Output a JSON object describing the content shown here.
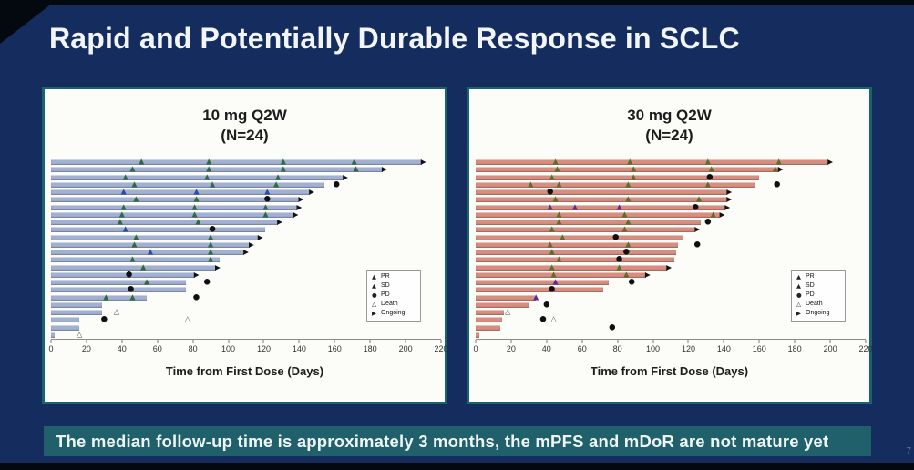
{
  "slide": {
    "title": "Rapid and Potentially Durable Response in SCLC",
    "footer_banner": "The median follow-up time is approximately 3 months, the mPFS and mDoR are not mature yet",
    "page_number": "7"
  },
  "colors": {
    "background": "#152d5e",
    "title_text": "#f2f6fc",
    "card_border": "#17646f",
    "card_bg": "#fcfcf9",
    "banner_bg": "#20606a",
    "banner_text": "#eef5f4",
    "axis": "#8a8a8a",
    "pd": "#101010",
    "death": "#3f3f3f",
    "ongoing": "#101010"
  },
  "legend": {
    "items": [
      {
        "label": "PR",
        "glyph": "filled-triangle"
      },
      {
        "label": "SD",
        "glyph": "filled-triangle"
      },
      {
        "label": "PD",
        "glyph": "filled-circle"
      },
      {
        "label": "Death",
        "glyph": "open-triangle"
      },
      {
        "label": "Ongoing",
        "glyph": "filled-arrow"
      }
    ]
  },
  "chart_data": [
    {
      "type": "bar",
      "variant": "swimmer-plot",
      "title": "10 mg Q2W",
      "subtitle": "(N=24)",
      "xlabel": "Time from First Dose (Days)",
      "xlim": [
        0,
        220
      ],
      "xticks": [
        0,
        20,
        40,
        60,
        80,
        100,
        120,
        140,
        160,
        180,
        200,
        220
      ],
      "bar_color": "#a2b0d2",
      "pr_color": "#2d6a3f",
      "sd_color": "#2b4ba8",
      "legend_position": "middle-right",
      "patients": [
        {
          "bar": 209,
          "ongoing": true,
          "markers": [
            {
              "t": "PR",
              "d": 51
            },
            {
              "t": "PR",
              "d": 89
            },
            {
              "t": "PR",
              "d": 131
            },
            {
              "t": "PR",
              "d": 171
            }
          ]
        },
        {
          "bar": 187,
          "ongoing": true,
          "markers": [
            {
              "t": "PR",
              "d": 46
            },
            {
              "t": "PR",
              "d": 89
            },
            {
              "t": "PR",
              "d": 131
            },
            {
              "t": "PR",
              "d": 172
            }
          ]
        },
        {
          "bar": 165,
          "ongoing": true,
          "markers": [
            {
              "t": "PR",
              "d": 42
            },
            {
              "t": "PR",
              "d": 88
            },
            {
              "t": "PR",
              "d": 128
            }
          ]
        },
        {
          "bar": 154,
          "ongoing": false,
          "markers": [
            {
              "t": "PR",
              "d": 47
            },
            {
              "t": "PR",
              "d": 91
            },
            {
              "t": "PR",
              "d": 127
            },
            {
              "t": "PD",
              "d": 161
            }
          ]
        },
        {
          "bar": 146,
          "ongoing": true,
          "markers": [
            {
              "t": "SD",
              "d": 41
            },
            {
              "t": "SD",
              "d": 82
            },
            {
              "t": "SD",
              "d": 122
            }
          ]
        },
        {
          "bar": 140,
          "ongoing": true,
          "markers": [
            {
              "t": "PR",
              "d": 48
            },
            {
              "t": "PR",
              "d": 82
            },
            {
              "t": "PD",
              "d": 122
            }
          ]
        },
        {
          "bar": 139,
          "ongoing": true,
          "markers": [
            {
              "t": "PR",
              "d": 41
            },
            {
              "t": "PR",
              "d": 81
            },
            {
              "t": "PR",
              "d": 121
            }
          ]
        },
        {
          "bar": 137,
          "ongoing": true,
          "markers": [
            {
              "t": "PR",
              "d": 40
            },
            {
              "t": "PR",
              "d": 81
            },
            {
              "t": "PR",
              "d": 121
            }
          ]
        },
        {
          "bar": 128,
          "ongoing": true,
          "markers": [
            {
              "t": "PR",
              "d": 39
            },
            {
              "t": "PR",
              "d": 83
            }
          ]
        },
        {
          "bar": 121,
          "ongoing": false,
          "markers": [
            {
              "t": "SD",
              "d": 42
            },
            {
              "t": "PD",
              "d": 91
            }
          ]
        },
        {
          "bar": 117,
          "ongoing": true,
          "markers": [
            {
              "t": "PR",
              "d": 48
            },
            {
              "t": "PR",
              "d": 90
            }
          ]
        },
        {
          "bar": 112,
          "ongoing": true,
          "markers": [
            {
              "t": "PR",
              "d": 47
            },
            {
              "t": "PR",
              "d": 90
            }
          ]
        },
        {
          "bar": 109,
          "ongoing": true,
          "markers": [
            {
              "t": "SD",
              "d": 56
            },
            {
              "t": "PR",
              "d": 90
            }
          ]
        },
        {
          "bar": 95,
          "ongoing": false,
          "markers": [
            {
              "t": "PR",
              "d": 46
            },
            {
              "t": "PR",
              "d": 90
            }
          ]
        },
        {
          "bar": 93,
          "ongoing": true,
          "markers": [
            {
              "t": "PR",
              "d": 52
            }
          ]
        },
        {
          "bar": 81,
          "ongoing": true,
          "markers": [
            {
              "t": "PD",
              "d": 44
            }
          ]
        },
        {
          "bar": 76,
          "ongoing": false,
          "markers": [
            {
              "t": "PR",
              "d": 54
            },
            {
              "t": "PD",
              "d": 88
            }
          ]
        },
        {
          "bar": 76,
          "ongoing": false,
          "markers": [
            {
              "t": "PD",
              "d": 45
            }
          ]
        },
        {
          "bar": 54,
          "ongoing": false,
          "markers": [
            {
              "t": "PR",
              "d": 31
            },
            {
              "t": "PR",
              "d": 46
            },
            {
              "t": "PD",
              "d": 82
            }
          ]
        },
        {
          "bar": 29,
          "ongoing": false,
          "markers": []
        },
        {
          "bar": 29,
          "ongoing": false,
          "markers": [
            {
              "t": "Death",
              "d": 37
            }
          ]
        },
        {
          "bar": 16,
          "ongoing": false,
          "markers": [
            {
              "t": "PD",
              "d": 30
            },
            {
              "t": "Death",
              "d": 77
            }
          ]
        },
        {
          "bar": 16,
          "ongoing": false,
          "markers": []
        },
        {
          "bar": 2,
          "ongoing": false,
          "markers": [
            {
              "t": "Death",
              "d": 16
            }
          ]
        }
      ]
    },
    {
      "type": "bar",
      "variant": "swimmer-plot",
      "title": "30 mg Q2W",
      "subtitle": "(N=24)",
      "xlabel": "Time from First Dose (Days)",
      "xlim": [
        0,
        220
      ],
      "xticks": [
        0,
        20,
        40,
        60,
        80,
        100,
        120,
        140,
        160,
        180,
        200,
        220
      ],
      "bar_color": "#d78e80",
      "pr_color": "#5d6e2a",
      "sd_color": "#5c2d91",
      "legend_position": "middle-right",
      "patients": [
        {
          "bar": 199,
          "ongoing": true,
          "markers": [
            {
              "t": "PR",
              "d": 45
            },
            {
              "t": "PR",
              "d": 87
            },
            {
              "t": "PR",
              "d": 131
            },
            {
              "t": "PR",
              "d": 171
            }
          ]
        },
        {
          "bar": 171,
          "ongoing": true,
          "markers": [
            {
              "t": "PR",
              "d": 46
            },
            {
              "t": "PR",
              "d": 89
            },
            {
              "t": "PR",
              "d": 133
            },
            {
              "t": "PR",
              "d": 169
            }
          ]
        },
        {
          "bar": 160,
          "ongoing": false,
          "markers": [
            {
              "t": "PR",
              "d": 43
            },
            {
              "t": "PR",
              "d": 89
            },
            {
              "t": "PD",
              "d": 132
            }
          ]
        },
        {
          "bar": 158,
          "ongoing": false,
          "markers": [
            {
              "t": "PR",
              "d": 31
            },
            {
              "t": "PR",
              "d": 47
            },
            {
              "t": "PR",
              "d": 86
            },
            {
              "t": "PR",
              "d": 131
            },
            {
              "t": "PD",
              "d": 170
            }
          ]
        },
        {
          "bar": 142,
          "ongoing": true,
          "markers": [
            {
              "t": "PD",
              "d": 42
            }
          ]
        },
        {
          "bar": 142,
          "ongoing": true,
          "markers": [
            {
              "t": "PR",
              "d": 45
            },
            {
              "t": "PR",
              "d": 86
            },
            {
              "t": "PR",
              "d": 126
            }
          ]
        },
        {
          "bar": 141,
          "ongoing": true,
          "markers": [
            {
              "t": "SD",
              "d": 42
            },
            {
              "t": "SD",
              "d": 56
            },
            {
              "t": "SD",
              "d": 81
            },
            {
              "t": "PD",
              "d": 124
            }
          ]
        },
        {
          "bar": 138,
          "ongoing": true,
          "markers": [
            {
              "t": "PR",
              "d": 47
            },
            {
              "t": "PR",
              "d": 84
            },
            {
              "t": "PR",
              "d": 134
            }
          ]
        },
        {
          "bar": 127,
          "ongoing": false,
          "markers": [
            {
              "t": "PR",
              "d": 47
            },
            {
              "t": "PR",
              "d": 86
            },
            {
              "t": "PD",
              "d": 131
            }
          ]
        },
        {
          "bar": 124,
          "ongoing": true,
          "markers": [
            {
              "t": "PR",
              "d": 43
            },
            {
              "t": "PR",
              "d": 84
            }
          ]
        },
        {
          "bar": 117,
          "ongoing": false,
          "markers": [
            {
              "t": "PR",
              "d": 49
            },
            {
              "t": "PD",
              "d": 79
            }
          ]
        },
        {
          "bar": 114,
          "ongoing": false,
          "markers": [
            {
              "t": "PR",
              "d": 42
            },
            {
              "t": "PR",
              "d": 86
            },
            {
              "t": "PD",
              "d": 125
            }
          ]
        },
        {
          "bar": 113,
          "ongoing": false,
          "markers": [
            {
              "t": "PR",
              "d": 43
            },
            {
              "t": "PD",
              "d": 85
            }
          ]
        },
        {
          "bar": 112,
          "ongoing": false,
          "markers": [
            {
              "t": "PR",
              "d": 47
            },
            {
              "t": "PD",
              "d": 81
            }
          ]
        },
        {
          "bar": 108,
          "ongoing": true,
          "markers": [
            {
              "t": "PR",
              "d": 43
            },
            {
              "t": "PR",
              "d": 81
            }
          ]
        },
        {
          "bar": 96,
          "ongoing": true,
          "markers": [
            {
              "t": "PR",
              "d": 44
            },
            {
              "t": "PR",
              "d": 85
            }
          ]
        },
        {
          "bar": 75,
          "ongoing": false,
          "markers": [
            {
              "t": "SD",
              "d": 45
            },
            {
              "t": "PD",
              "d": 88
            }
          ]
        },
        {
          "bar": 72,
          "ongoing": false,
          "markers": [
            {
              "t": "PD",
              "d": 43
            }
          ]
        },
        {
          "bar": 34,
          "ongoing": false,
          "markers": [
            {
              "t": "SD",
              "d": 34
            }
          ]
        },
        {
          "bar": 30,
          "ongoing": false,
          "markers": [
            {
              "t": "PD",
              "d": 40
            }
          ]
        },
        {
          "bar": 16,
          "ongoing": false,
          "markers": [
            {
              "t": "Death",
              "d": 18
            }
          ]
        },
        {
          "bar": 15,
          "ongoing": false,
          "markers": [
            {
              "t": "PD",
              "d": 38
            },
            {
              "t": "Death",
              "d": 44
            }
          ]
        },
        {
          "bar": 14,
          "ongoing": false,
          "markers": [
            {
              "t": "PD",
              "d": 77
            }
          ]
        },
        {
          "bar": 2,
          "ongoing": false,
          "markers": []
        }
      ]
    }
  ]
}
